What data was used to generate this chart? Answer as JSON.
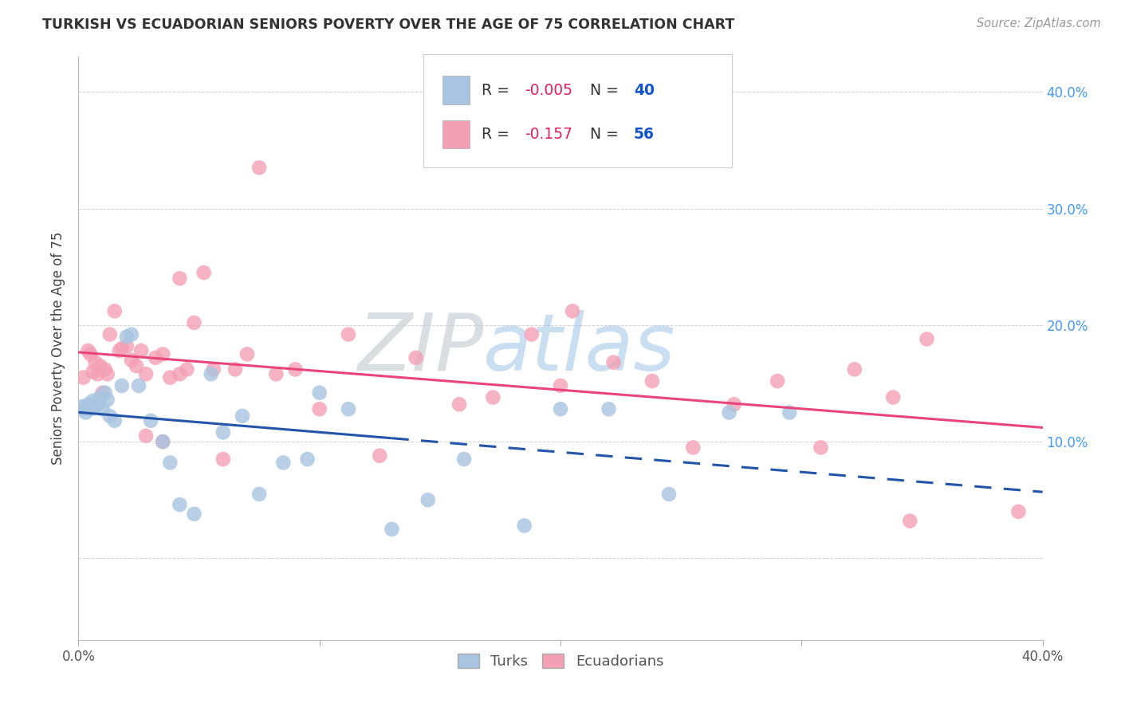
{
  "title": "TURKISH VS ECUADORIAN SENIORS POVERTY OVER THE AGE OF 75 CORRELATION CHART",
  "source": "Source: ZipAtlas.com",
  "ylabel": "Seniors Poverty Over the Age of 75",
  "turks_R": "-0.005",
  "turks_N": "40",
  "ecua_R": "-0.157",
  "ecua_N": "56",
  "turks_color": "#a8c4e0",
  "ecua_color": "#f4a0b4",
  "turks_line_color": "#2255aa",
  "ecua_line_color": "#e8457a",
  "background_color": "#ffffff",
  "turks_x": [
    0.001,
    0.002,
    0.003,
    0.004,
    0.005,
    0.006,
    0.007,
    0.008,
    0.009,
    0.01,
    0.011,
    0.012,
    0.013,
    0.015,
    0.018,
    0.02,
    0.022,
    0.025,
    0.03,
    0.035,
    0.038,
    0.042,
    0.048,
    0.055,
    0.06,
    0.068,
    0.075,
    0.085,
    0.095,
    0.1,
    0.112,
    0.13,
    0.145,
    0.16,
    0.185,
    0.2,
    0.22,
    0.245,
    0.27,
    0.295
  ],
  "turks_y": [
    0.13,
    0.128,
    0.125,
    0.132,
    0.128,
    0.135,
    0.13,
    0.132,
    0.138,
    0.128,
    0.142,
    0.136,
    0.122,
    0.118,
    0.148,
    0.19,
    0.192,
    0.148,
    0.118,
    0.1,
    0.082,
    0.046,
    0.038,
    0.158,
    0.108,
    0.122,
    0.055,
    0.082,
    0.085,
    0.142,
    0.128,
    0.025,
    0.05,
    0.085,
    0.028,
    0.128,
    0.128,
    0.055,
    0.125,
    0.125
  ],
  "ecua_x": [
    0.002,
    0.004,
    0.005,
    0.006,
    0.007,
    0.008,
    0.009,
    0.01,
    0.011,
    0.012,
    0.013,
    0.015,
    0.017,
    0.018,
    0.02,
    0.022,
    0.024,
    0.026,
    0.028,
    0.032,
    0.035,
    0.038,
    0.042,
    0.045,
    0.048,
    0.052,
    0.056,
    0.06,
    0.065,
    0.07,
    0.075,
    0.082,
    0.09,
    0.1,
    0.112,
    0.125,
    0.14,
    0.158,
    0.172,
    0.188,
    0.205,
    0.222,
    0.238,
    0.255,
    0.272,
    0.29,
    0.308,
    0.322,
    0.338,
    0.352,
    0.028,
    0.035,
    0.042,
    0.2,
    0.345,
    0.39
  ],
  "ecua_y": [
    0.155,
    0.178,
    0.175,
    0.16,
    0.168,
    0.158,
    0.165,
    0.142,
    0.162,
    0.158,
    0.192,
    0.212,
    0.178,
    0.18,
    0.182,
    0.17,
    0.165,
    0.178,
    0.158,
    0.172,
    0.175,
    0.155,
    0.158,
    0.162,
    0.202,
    0.245,
    0.162,
    0.085,
    0.162,
    0.175,
    0.335,
    0.158,
    0.162,
    0.128,
    0.192,
    0.088,
    0.172,
    0.132,
    0.138,
    0.192,
    0.212,
    0.168,
    0.152,
    0.095,
    0.132,
    0.152,
    0.095,
    0.162,
    0.138,
    0.188,
    0.105,
    0.1,
    0.24,
    0.148,
    0.032,
    0.04
  ],
  "xlim": [
    0.0,
    0.4
  ],
  "ylim": [
    -0.07,
    0.43
  ],
  "xticks": [
    0.0,
    0.1,
    0.2,
    0.3,
    0.4
  ],
  "yticks": [
    0.0,
    0.1,
    0.2,
    0.3,
    0.4
  ],
  "right_ytick_labels": [
    "",
    "10.0%",
    "20.0%",
    "30.0%",
    "40.0%"
  ],
  "left_ytick_labels": [
    "",
    "",
    "",
    "",
    ""
  ],
  "xtick_labels_show": [
    "0.0%",
    "",
    "",
    "",
    "40.0%"
  ]
}
